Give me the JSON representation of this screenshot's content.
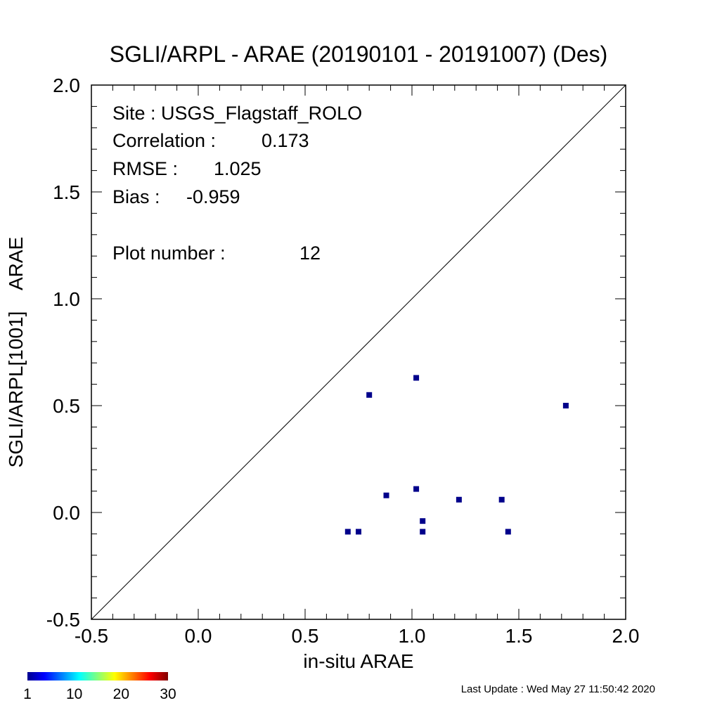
{
  "chart_data": {
    "type": "scatter",
    "title": "SGLI/ARPL - ARAE (20190101 - 20191007) (Des)",
    "xlabel": "in-situ ARAE",
    "ylabel": "SGLI/ARPL[1001]    ARAE",
    "xlim": [
      -0.5,
      2.0
    ],
    "ylim": [
      -0.5,
      2.0
    ],
    "x_ticks": [
      "-0.5",
      "0.0",
      "0.5",
      "1.0",
      "1.5",
      "2.0"
    ],
    "y_ticks": [
      "-0.5",
      "0.0",
      "0.5",
      "1.0",
      "1.5",
      "2.0"
    ],
    "one_to_one_line": true,
    "point_color": "#00008b",
    "points": [
      {
        "x": 0.8,
        "y": 0.55
      },
      {
        "x": 1.02,
        "y": 0.63
      },
      {
        "x": 1.72,
        "y": 0.5
      },
      {
        "x": 0.88,
        "y": 0.08
      },
      {
        "x": 1.02,
        "y": 0.11
      },
      {
        "x": 1.22,
        "y": 0.06
      },
      {
        "x": 1.42,
        "y": 0.06
      },
      {
        "x": 1.05,
        "y": -0.04
      },
      {
        "x": 0.7,
        "y": -0.09
      },
      {
        "x": 0.75,
        "y": -0.09
      },
      {
        "x": 1.05,
        "y": -0.09
      },
      {
        "x": 1.45,
        "y": -0.09
      }
    ]
  },
  "stats": {
    "site": "Site : USGS_Flagstaff_ROLO",
    "correlation_label": "Correlation :",
    "correlation_value": "0.173",
    "rmse_label": "RMSE :",
    "rmse_value": "1.025",
    "bias_label": "Bias :",
    "bias_value": "-0.959",
    "plot_number_label": "Plot number :",
    "plot_number_value": "12"
  },
  "colorbar": {
    "tick_labels": [
      "1",
      "10",
      "20",
      "30"
    ],
    "colors": [
      "#00008f",
      "#0000ff",
      "#00ffff",
      "#ffff00",
      "#ff0000",
      "#800000"
    ]
  },
  "footer": {
    "last_update": "Last Update : Wed May 27 11:50:42 2020"
  }
}
